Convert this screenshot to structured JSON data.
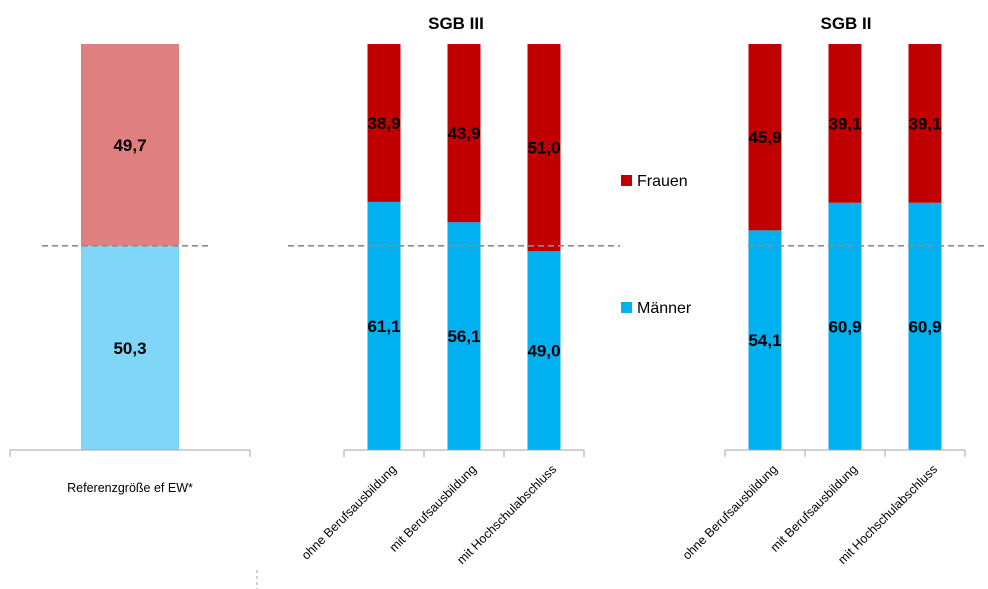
{
  "chart_data": [
    {
      "type": "bar",
      "stacked": true,
      "title": "",
      "categories": [
        "Referenzgröße ef EW*"
      ],
      "series": [
        {
          "name": "Männer",
          "values": [
            50.3
          ],
          "color": "#7fd6f6"
        },
        {
          "name": "Frauen",
          "values": [
            49.7
          ],
          "color": "#e07f7f"
        }
      ],
      "ylim": [
        0,
        100
      ],
      "reference_line": 50.3,
      "grid": false
    },
    {
      "type": "bar",
      "stacked": true,
      "title": "SGB III",
      "categories": [
        "ohne Berufsausbildung",
        "mit Berufsausbildung",
        "mit Hochschulabschluss"
      ],
      "series": [
        {
          "name": "Männer",
          "values": [
            61.1,
            56.1,
            49.0
          ],
          "color": "#00b0f0"
        },
        {
          "name": "Frauen",
          "values": [
            38.9,
            43.9,
            51.0
          ],
          "color": "#c00000"
        }
      ],
      "ylim": [
        0,
        100
      ],
      "reference_line": 50.3,
      "grid": false
    },
    {
      "type": "bar",
      "stacked": true,
      "title": "SGB II",
      "categories": [
        "ohne Berufsausbildung",
        "mit Berufsausbildung",
        "mit Hochschulabschluss"
      ],
      "series": [
        {
          "name": "Männer",
          "values": [
            54.1,
            60.9,
            60.9
          ],
          "color": "#00b0f0"
        },
        {
          "name": "Frauen",
          "values": [
            45.9,
            39.1,
            39.1
          ],
          "color": "#c00000"
        }
      ],
      "ylim": [
        0,
        100
      ],
      "reference_line": 50.3,
      "grid": false
    }
  ],
  "legend": {
    "placement": "center",
    "items": [
      {
        "label": "Frauen",
        "color": "#c00000"
      },
      {
        "label": "Männer",
        "color": "#00b0f0"
      }
    ]
  }
}
